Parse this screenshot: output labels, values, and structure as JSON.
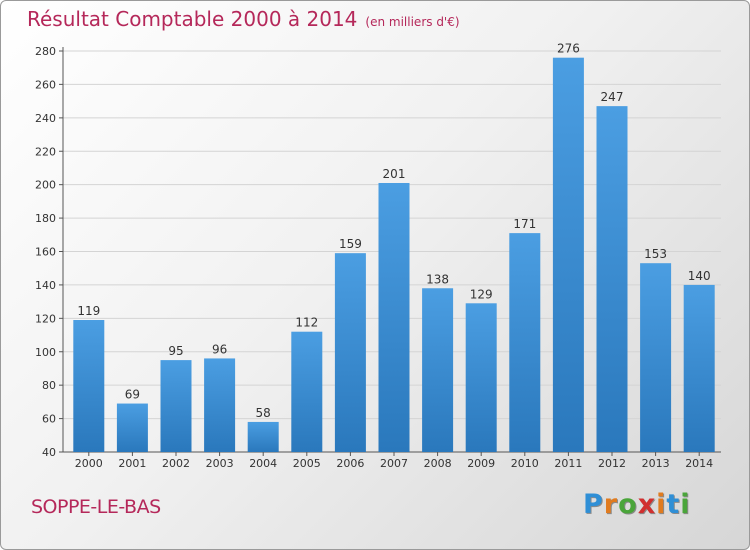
{
  "title": "Résultat Comptable 2000 à 2014",
  "subtitle": "(en milliers d'€)",
  "commune": "SOPPE-LE-BAS",
  "logo": {
    "letters": [
      "P",
      "r",
      "o",
      "x",
      "i",
      "t",
      "i"
    ],
    "colors": [
      "#2f8fd6",
      "#e07b1f",
      "#4aa53a",
      "#d12f2f",
      "#e07b1f",
      "#2f8fd6",
      "#4aa53a"
    ]
  },
  "colors": {
    "bar": "#4b9ee2",
    "bar_dark": "#2a78bc",
    "title": "#b5285a"
  },
  "chart_data": {
    "type": "bar",
    "categories": [
      "2000",
      "2001",
      "2002",
      "2003",
      "2004",
      "2005",
      "2006",
      "2007",
      "2008",
      "2009",
      "2010",
      "2011",
      "2012",
      "2013",
      "2014"
    ],
    "values": [
      119,
      69,
      95,
      96,
      58,
      112,
      159,
      201,
      138,
      129,
      171,
      276,
      247,
      153,
      140
    ],
    "ylim": [
      40,
      280
    ],
    "yticks": [
      40,
      60,
      80,
      100,
      120,
      140,
      160,
      180,
      200,
      220,
      240,
      260,
      280
    ],
    "grid": true,
    "legend": "none"
  }
}
